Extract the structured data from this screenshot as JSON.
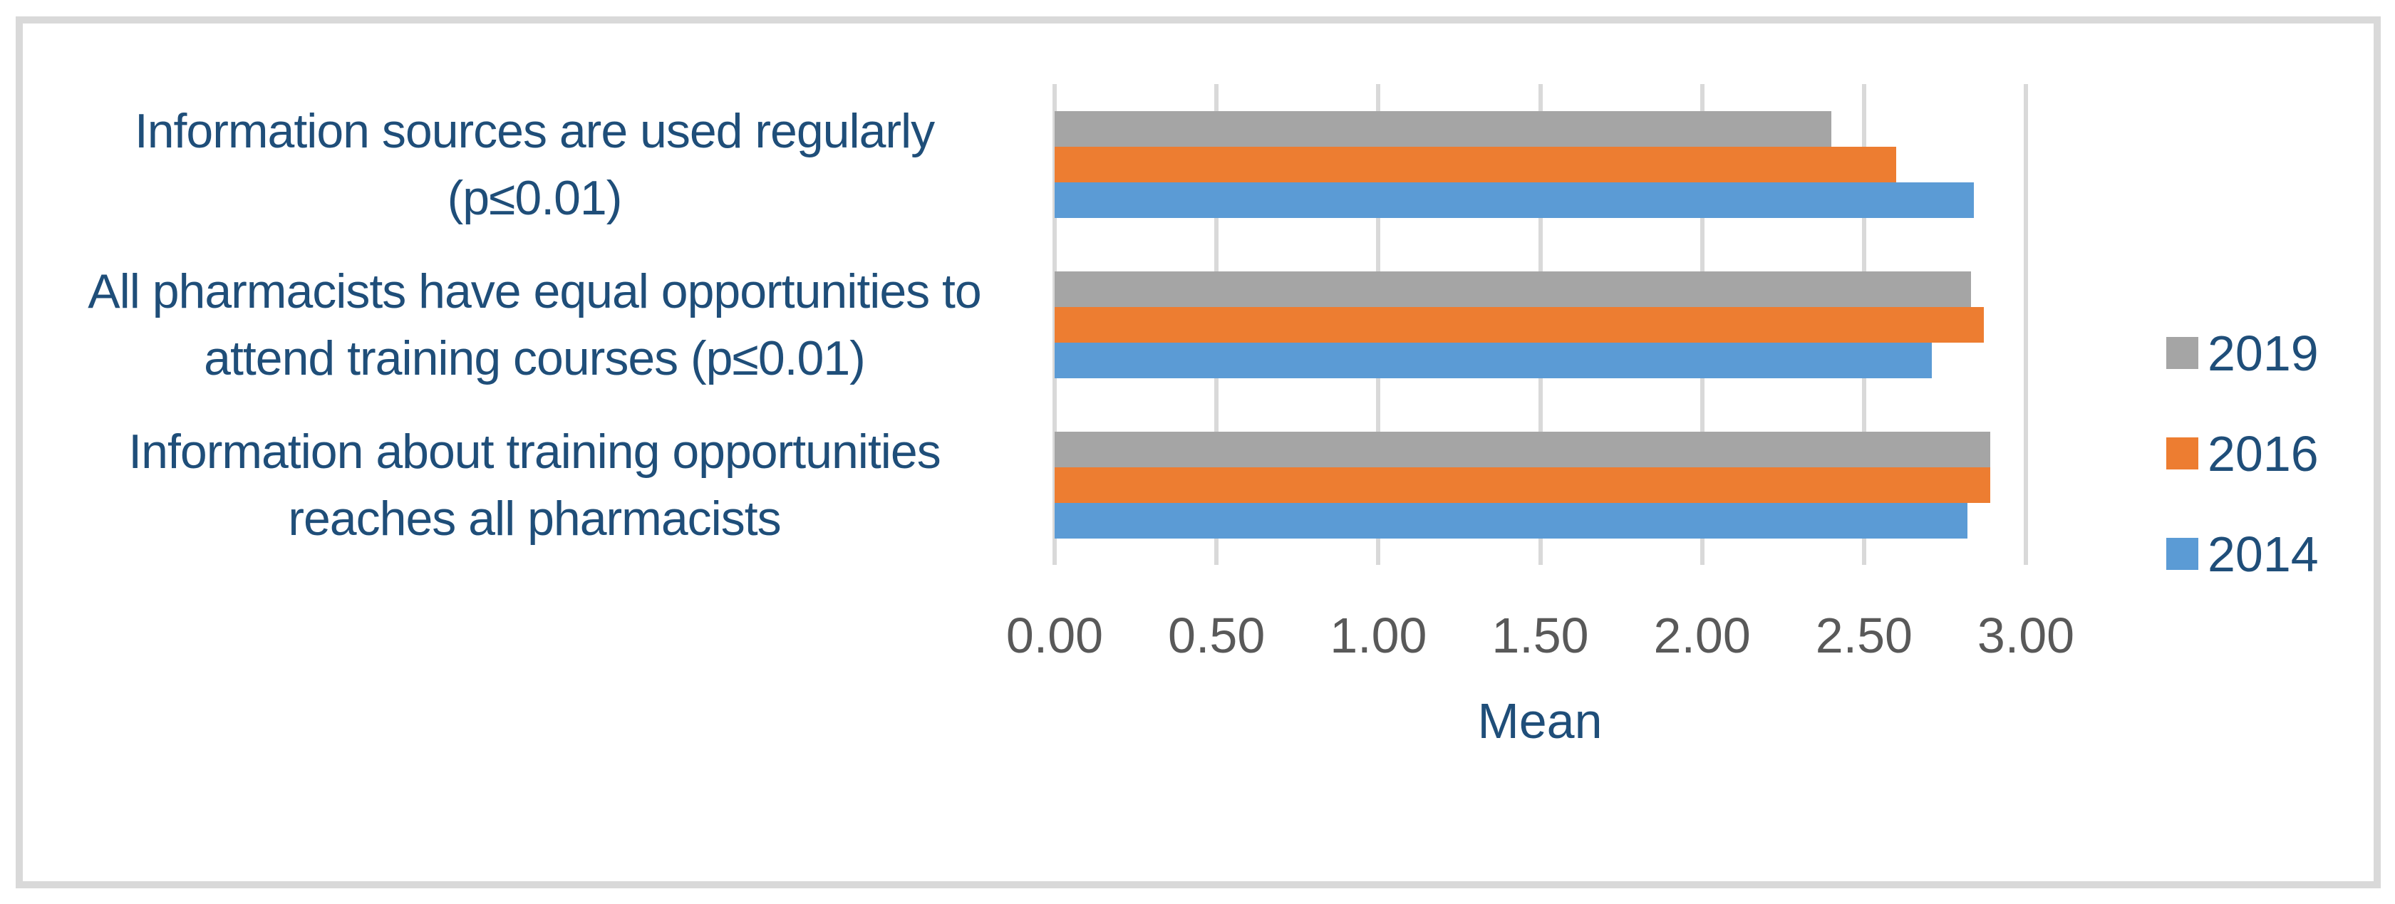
{
  "figure": {
    "background_color": "#FFFFFF",
    "frame_color": "#D9D9D9"
  },
  "chart_data": {
    "type": "bar",
    "orientation": "horizontal",
    "title": "",
    "xlabel": "Mean",
    "ylabel": "",
    "xlim": [
      0,
      3
    ],
    "x_tick_labels": [
      "0.00",
      "0.50",
      "1.00",
      "1.50",
      "2.00",
      "2.50",
      "3.00"
    ],
    "grid": true,
    "gridline_color": "#D9D9D9",
    "axis_text_color": "#595959",
    "label_text_color": "#1F4E79",
    "legend_position": "right",
    "categories": [
      "Information sources are used regularly (p≤0.01)",
      "All pharmacists have equal opportunities to attend training courses (p≤0.01)",
      "Information about training opportunities reaches all pharmacists"
    ],
    "category_label_lines": [
      [
        "Information sources are used regularly",
        "(p≤0.01)"
      ],
      [
        "All pharmacists have equal opportunities to",
        "attend training courses (p≤0.01)"
      ],
      [
        "Information about training opportunities",
        "reaches all pharmacists"
      ]
    ],
    "series": [
      {
        "name": "2019",
        "color": "#A5A5A5",
        "values": [
          2.4,
          2.83,
          2.89
        ]
      },
      {
        "name": "2016",
        "color": "#ED7D31",
        "values": [
          2.6,
          2.87,
          2.89
        ]
      },
      {
        "name": "2014",
        "color": "#5B9BD5",
        "values": [
          2.84,
          2.71,
          2.82
        ]
      }
    ]
  }
}
